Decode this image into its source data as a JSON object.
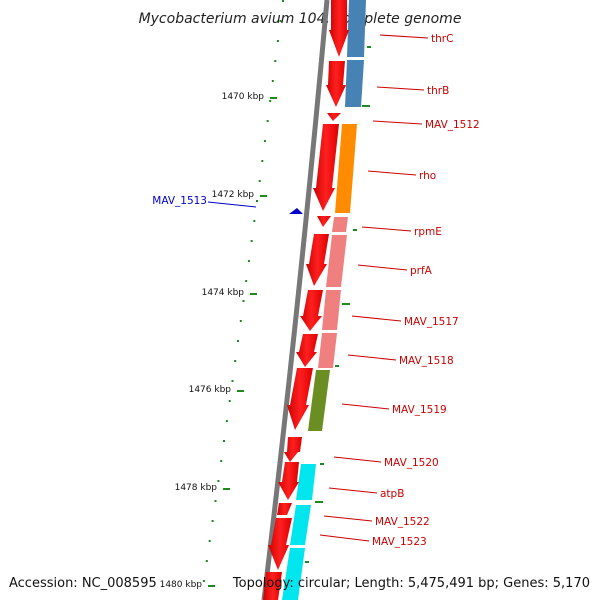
{
  "title": "Mycobacterium avium 104, complete genome",
  "footer": {
    "accession": "Accession: NC_008595",
    "topology": "Topology: circular; Length: 5,475,491 bp; Genes: 5,170"
  },
  "colors": {
    "backbone": "#7a7a7a",
    "tick": "#1e8a1e",
    "gene_arrow": "#ff0000",
    "label_right": "#cc0000",
    "label_left": "#0000cc",
    "cog_blue": "#4682b4",
    "cog_orange": "#ff8c00",
    "cog_pink": "#f08080",
    "cog_olive": "#6b8e23",
    "cog_cyan": "#00e5ee"
  },
  "scale_labels": [
    "1470 kbp",
    "1472 kbp",
    "1474 kbp",
    "1476 kbp",
    "1478 kbp",
    "1480 kbp"
  ],
  "genes_right": [
    "thrC",
    "thrB",
    "MAV_1512",
    "rho",
    "rpmE",
    "prfA",
    "MAV_1517",
    "MAV_1518",
    "MAV_1519",
    "MAV_1520",
    "atpB",
    "MAV_1522",
    "MAV_1523"
  ],
  "genes_left": [
    "MAV_1513"
  ]
}
